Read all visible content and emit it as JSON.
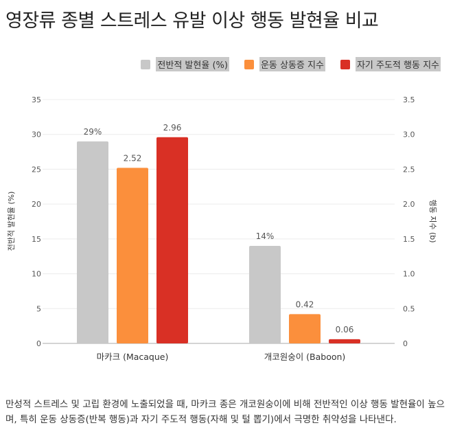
{
  "title": "영장류 종별 스트레스 유발 이상 행동 발현율 비교",
  "caption": "만성적 스트레스 및 고립 환경에 노출되었을 때, 마카크 종은 개코원숭이에 비해 전반적인 이상 행동 발현율이 높으며, 특히 운동 상동증(반복 행동)과 자기 주도적 행동(자해 및 털 뽑기)에서 극명한 취약성을 나타낸다.",
  "chart_data": {
    "type": "bar",
    "title": "영장류 종별 스트레스 유발 이상 행동 발현율 비교",
    "categories": [
      "마카크 (Macaque)",
      "개코원숭이 (Baboon)"
    ],
    "ylabel": "전반적 발현율 (%)",
    "y2label": "행동 지수 (b)",
    "ylim": [
      0,
      35
    ],
    "y2lim": [
      0,
      3.5
    ],
    "yticks": [
      "0",
      "5",
      "10",
      "15",
      "20",
      "25",
      "30",
      "35"
    ],
    "y2ticks": [
      "0",
      "0.5",
      "1.0",
      "1.5",
      "2.0",
      "2.5",
      "3.0",
      "3.5"
    ],
    "legend_position": "top-right",
    "grid": true,
    "series": [
      {
        "name": "전반적 발현율 (%)",
        "axis": "left",
        "color": "#c8c8c8",
        "values": [
          29,
          14
        ],
        "labels": [
          "29%",
          "14%"
        ]
      },
      {
        "name": "운동 상동증 지수",
        "axis": "right",
        "color": "#fb8f3c",
        "values": [
          2.52,
          0.42
        ],
        "labels": [
          "2.52",
          "0.42"
        ]
      },
      {
        "name": "자기 주도적 행동 지수",
        "axis": "right",
        "color": "#d93025",
        "values": [
          2.96,
          0.06
        ],
        "labels": [
          "2.96",
          "0.06"
        ]
      }
    ]
  }
}
